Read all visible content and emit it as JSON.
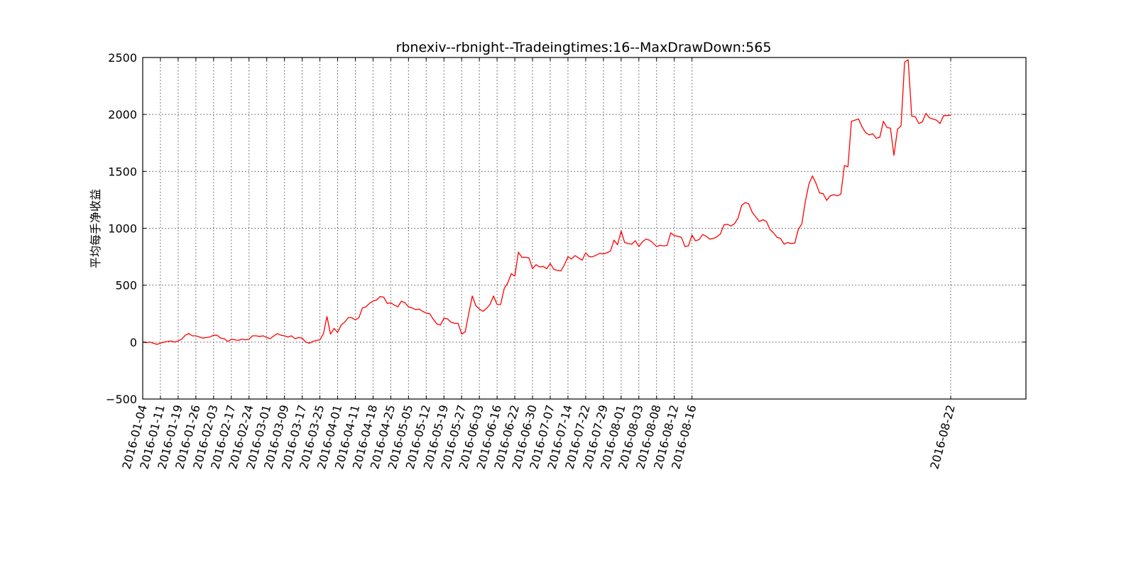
{
  "chart_data": {
    "type": "line",
    "title": "rbnexiv--rbnight--Tradeingtimes:16--MaxDrawDown:565",
    "xlabel": "",
    "ylabel": "平均每手净收益",
    "ylim": [
      -500,
      2500
    ],
    "yticks": [
      -500,
      0,
      500,
      1000,
      1500,
      2000,
      2500
    ],
    "ytick_labels": [
      "−500",
      "0",
      "500",
      "1000",
      "1500",
      "2000",
      "2500"
    ],
    "xticks": [
      "2016-01-04",
      "2016-01-11",
      "2016-01-19",
      "2016-01-26",
      "2016-02-03",
      "2016-02-17",
      "2016-02-24",
      "2016-03-01",
      "2016-03-09",
      "2016-03-17",
      "2016-03-25",
      "2016-04-01",
      "2016-04-11",
      "2016-04-18",
      "2016-04-25",
      "2016-05-05",
      "2016-05-12",
      "2016-05-19",
      "2016-05-27",
      "2016-06-03",
      "2016-06-16",
      "2016-06-22",
      "2016-06-30",
      "2016-07-07",
      "2016-07-14",
      "2016-07-22",
      "2016-07-29",
      "2016-08-01",
      "2016-08-03",
      "2016-08-08",
      "2016-08-12",
      "2016-08-16",
      "2016-08-22"
    ],
    "grid": true,
    "series": [
      {
        "color": "#ff0000",
        "values": [
          0,
          -5,
          0,
          -10,
          -20,
          -10,
          0,
          5,
          10,
          0,
          10,
          25,
          60,
          75,
          55,
          55,
          45,
          35,
          40,
          45,
          60,
          60,
          35,
          30,
          5,
          25,
          20,
          15,
          25,
          20,
          25,
          55,
          55,
          50,
          55,
          40,
          30,
          55,
          75,
          60,
          55,
          45,
          55,
          30,
          40,
          35,
          0,
          -10,
          5,
          15,
          20,
          75,
          225,
          70,
          120,
          85,
          150,
          175,
          215,
          215,
          195,
          215,
          300,
          310,
          340,
          360,
          370,
          400,
          395,
          340,
          345,
          325,
          310,
          360,
          345,
          310,
          300,
          285,
          290,
          270,
          255,
          250,
          200,
          160,
          150,
          210,
          205,
          175,
          165,
          165,
          70,
          90,
          250,
          405,
          320,
          290,
          270,
          295,
          330,
          405,
          330,
          330,
          470,
          520,
          600,
          580,
          790,
          745,
          745,
          740,
          645,
          680,
          660,
          665,
          645,
          690,
          640,
          630,
          625,
          680,
          750,
          730,
          760,
          740,
          720,
          785,
          750,
          750,
          765,
          780,
          775,
          785,
          800,
          895,
          855,
          975,
          875,
          865,
          860,
          890,
          840,
          880,
          905,
          895,
          870,
          840,
          850,
          845,
          850,
          960,
          935,
          930,
          920,
          840,
          845,
          940,
          890,
          900,
          945,
          930,
          905,
          910,
          925,
          950,
          1030,
          1035,
          1020,
          1040,
          1090,
          1200,
          1225,
          1215,
          1140,
          1100,
          1060,
          1075,
          1060,
          990,
          960,
          920,
          910,
          860,
          875,
          865,
          870,
          990,
          1040,
          1240,
          1390,
          1460,
          1395,
          1310,
          1305,
          1245,
          1285,
          1295,
          1285,
          1300,
          1550,
          1540,
          1940,
          1950,
          1960,
          1890,
          1840,
          1820,
          1830,
          1790,
          1800,
          1940,
          1885,
          1880,
          1640,
          1870,
          1900,
          2460,
          2480,
          1985,
          1980,
          1920,
          1935,
          2010,
          1970,
          1960,
          1950,
          1920,
          1990,
          1990,
          1995
        ]
      }
    ]
  },
  "colors": {
    "line": "#ff0000",
    "axes": "#000000",
    "grid": "#555555"
  }
}
